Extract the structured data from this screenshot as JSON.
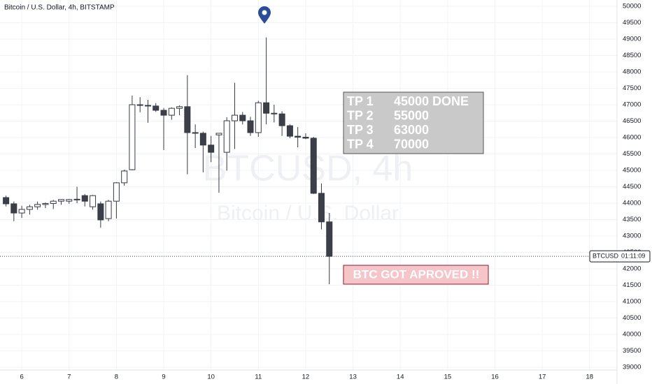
{
  "chart_data": {
    "type": "candlestick",
    "title": "Bitcoin / U.S. Dollar, 4h, BITSTAMP",
    "watermark": "BTCUSD, 4h",
    "watermark_subtitle": "Bitcoin / U.S. Dollar",
    "x": [
      5.667,
      5.833,
      6,
      6.167,
      6.333,
      6.5,
      6.667,
      6.833,
      7,
      7.167,
      7.333,
      7.5,
      7.667,
      7.833,
      8,
      8.167,
      8.333,
      8.5,
      8.667,
      8.833,
      9,
      9.167,
      9.333,
      9.5,
      9.667,
      9.833,
      10,
      10.167,
      10.333,
      10.5,
      10.667,
      10.833,
      11,
      11.167,
      11.333,
      11.5,
      11.667,
      11.833,
      12,
      12.167,
      12.333,
      12.5
    ],
    "open": [
      44170,
      43980,
      43700,
      43810,
      43890,
      43960,
      43990,
      44060,
      44060,
      44110,
      44230,
      43890,
      43980,
      43530,
      44060,
      44620,
      45020,
      47000,
      46980,
      46960,
      46830,
      46680,
      46890,
      46940,
      46150,
      46130,
      45770,
      46080,
      45550,
      46510,
      46680,
      46510,
      46150,
      47060,
      46740,
      46720,
      46360,
      46040,
      46010,
      45980,
      44300,
      43430
    ],
    "high": [
      44230,
      44050,
      43920,
      43950,
      44050,
      44020,
      44100,
      44120,
      44130,
      44500,
      44280,
      44250,
      44050,
      44100,
      44640,
      45020,
      47280,
      47230,
      47150,
      47050,
      46900,
      46920,
      46980,
      47900,
      46400,
      46180,
      46050,
      46100,
      46620,
      47670,
      46780,
      46630,
      47120,
      49050,
      47000,
      46800,
      46400,
      46320,
      46130,
      46020,
      44600,
      43700
    ],
    "low": [
      43900,
      43450,
      43550,
      43650,
      43800,
      43850,
      43820,
      43950,
      43980,
      44000,
      43900,
      43800,
      43250,
      43450,
      43530,
      44530,
      45000,
      46770,
      46450,
      46780,
      45620,
      46540,
      46680,
      44880,
      45680,
      44940,
      45250,
      44320,
      44990,
      45650,
      46400,
      46050,
      46020,
      46400,
      46460,
      46050,
      45980,
      45700,
      45950,
      44280,
      43200,
      41530
    ],
    "close": [
      43980,
      43700,
      43810,
      43890,
      43960,
      43990,
      44060,
      44110,
      44110,
      44120,
      44060,
      44230,
      43490,
      44060,
      44620,
      44980,
      47000,
      46980,
      46960,
      46830,
      46680,
      46890,
      46940,
      46150,
      46130,
      45770,
      45550,
      46130,
      46510,
      46680,
      46510,
      46150,
      47060,
      46740,
      46720,
      46360,
      46040,
      46010,
      45980,
      44300,
      43430,
      42380
    ],
    "up_color": "#ffffff",
    "down_color": "#3c3f48",
    "xlim": [
      5.54,
      18.58
    ],
    "xticks": [
      6,
      7,
      8,
      9,
      10,
      11,
      12,
      13,
      14,
      15,
      16,
      17,
      18
    ],
    "ylim": [
      38787,
      50191
    ],
    "yticks": [
      39000,
      39500,
      40000,
      40500,
      41000,
      41500,
      42000,
      42500,
      43000,
      43500,
      44000,
      44500,
      45000,
      45500,
      46000,
      46500,
      47000,
      47500,
      48000,
      48500,
      49000,
      49500,
      50000
    ],
    "grid": true,
    "price_tag": {
      "symbol": "BTCUSD",
      "countdown": "01:11:09"
    },
    "annotations": {
      "targets": [
        [
          "TP 1",
          "45000 DONE"
        ],
        [
          "TP 2",
          "55000"
        ],
        [
          "TP 3",
          "63000"
        ],
        [
          "TP 4",
          "70000"
        ]
      ],
      "banner": "BTC GOT APROVED !!"
    }
  }
}
